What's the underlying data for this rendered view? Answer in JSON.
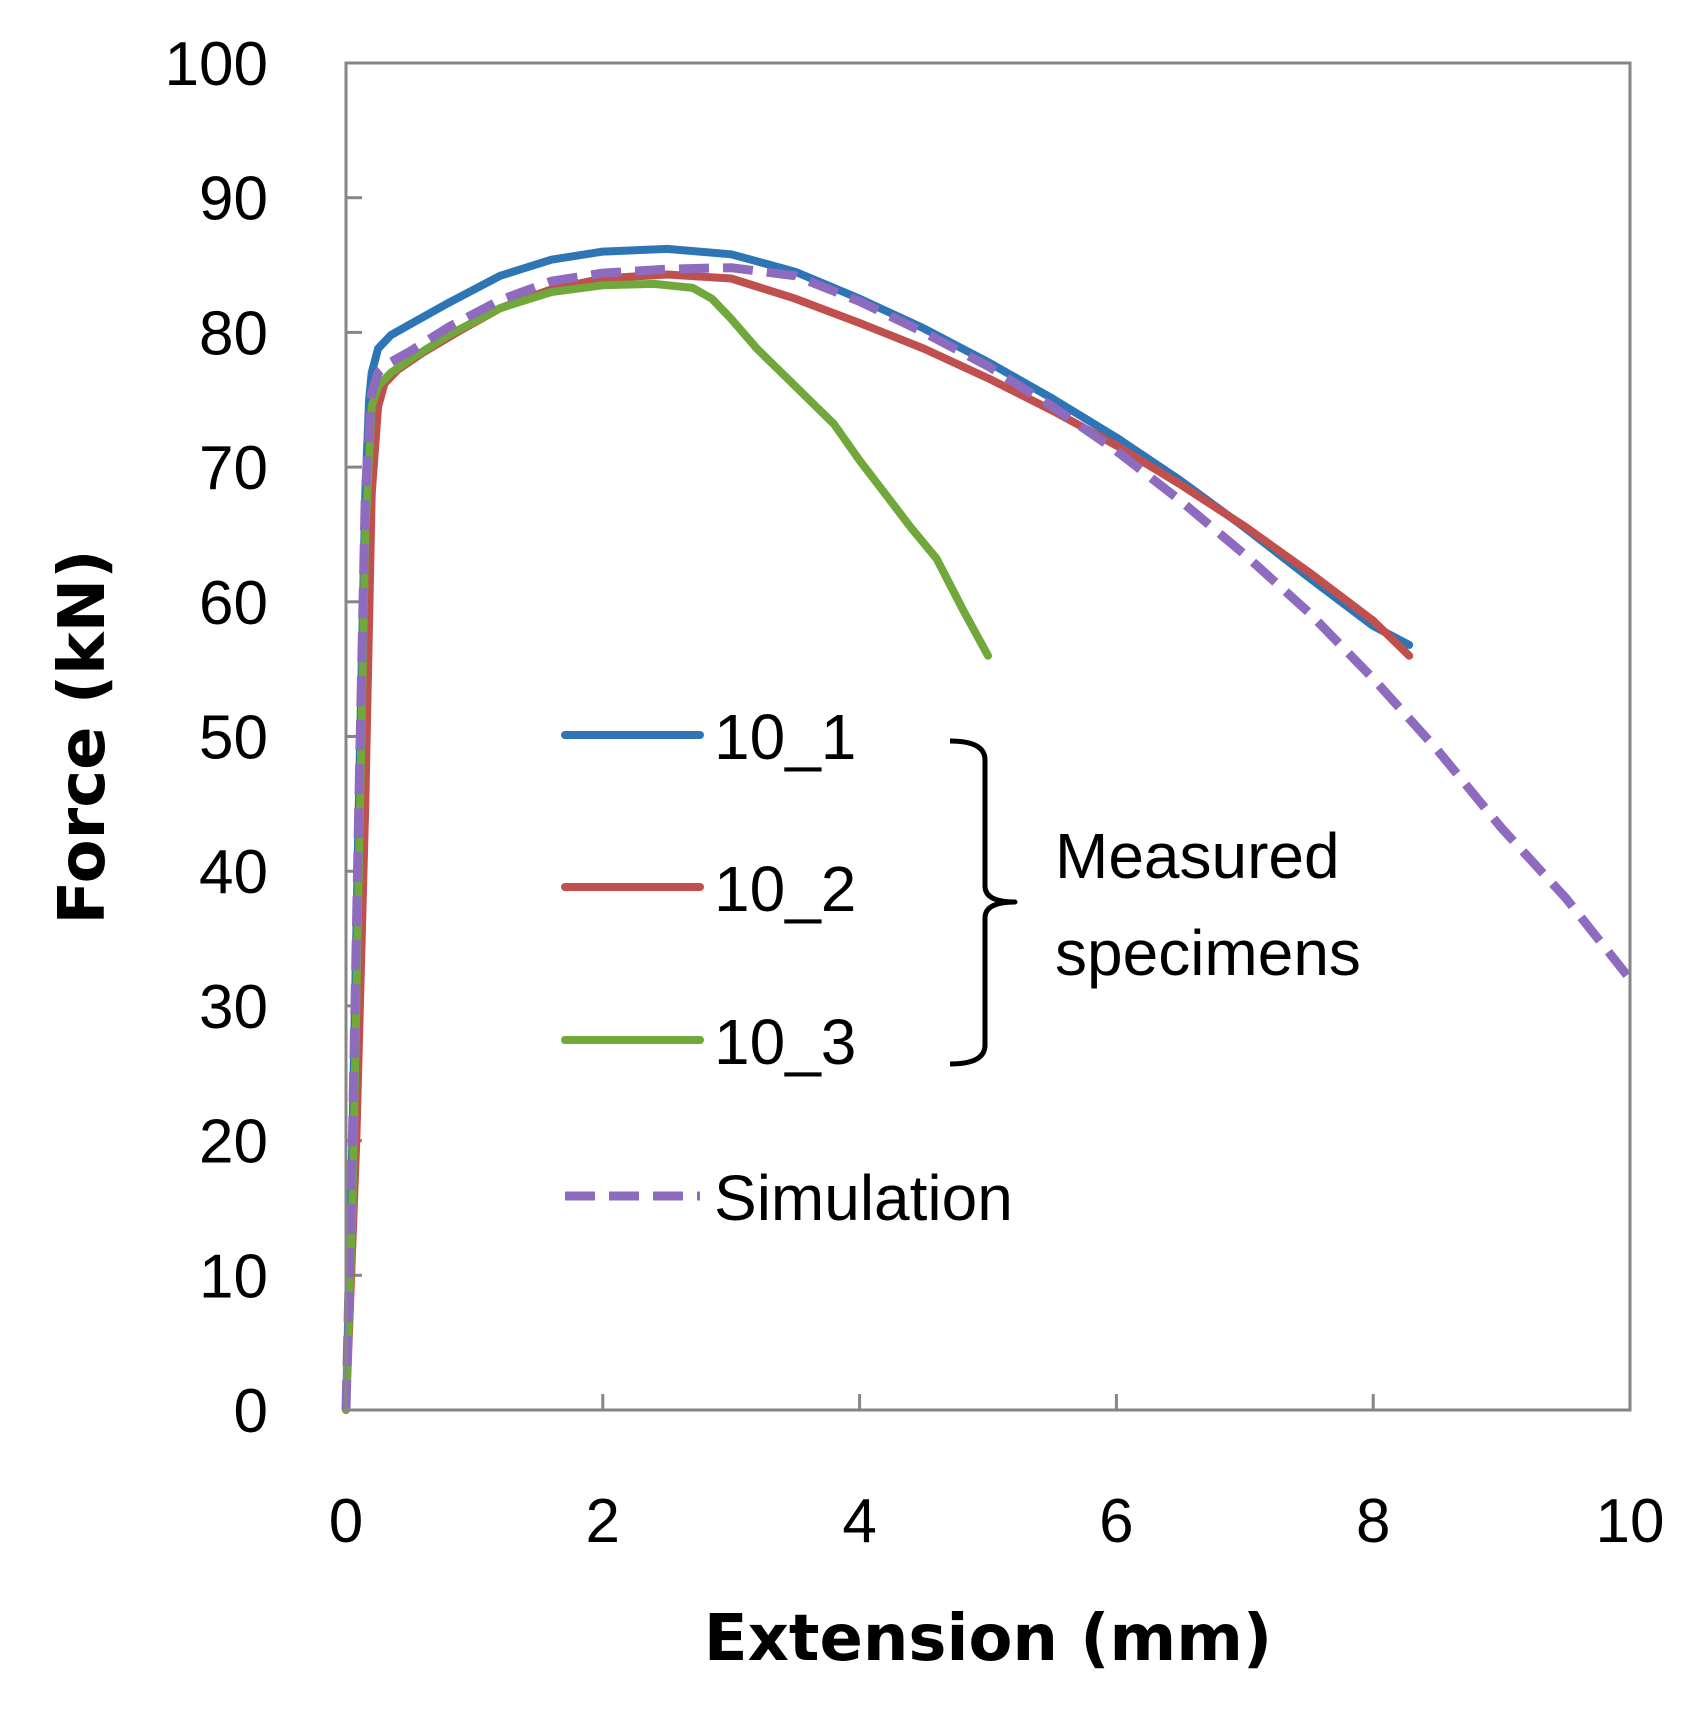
{
  "chart_data": {
    "type": "line",
    "title": "",
    "xlabel": "Extension (mm)",
    "ylabel": "Force (kN)",
    "xlim": [
      0,
      10
    ],
    "ylim": [
      0,
      100
    ],
    "xticks": [
      0,
      2,
      4,
      6,
      8,
      10
    ],
    "yticks": [
      0,
      10,
      20,
      30,
      40,
      50,
      60,
      70,
      80,
      90,
      100
    ],
    "grid": false,
    "series": [
      {
        "name": "10_1",
        "color": "#2e75b6",
        "style": "solid",
        "group": "measured",
        "x": [
          0,
          0.05,
          0.1,
          0.15,
          0.18,
          0.2,
          0.25,
          0.35,
          0.5,
          0.8,
          1.2,
          1.6,
          2.0,
          2.5,
          3.0,
          3.5,
          4.0,
          4.5,
          5.0,
          5.5,
          6.0,
          6.5,
          7.0,
          7.5,
          8.0,
          8.28
        ],
        "y": [
          0,
          20,
          45,
          68,
          75,
          77,
          78.8,
          79.8,
          80.6,
          82.2,
          84.2,
          85.4,
          86.0,
          86.2,
          85.8,
          84.5,
          82.5,
          80.3,
          77.8,
          75.1,
          72.2,
          69.0,
          65.5,
          61.8,
          58.2,
          56.8
        ]
      },
      {
        "name": "10_2",
        "color": "#c0504d",
        "style": "solid",
        "group": "measured",
        "x": [
          0,
          0.08,
          0.15,
          0.2,
          0.25,
          0.3,
          0.4,
          0.6,
          0.9,
          1.2,
          1.6,
          2.0,
          2.5,
          3.0,
          3.5,
          4.0,
          4.5,
          5.0,
          5.5,
          6.0,
          6.5,
          7.0,
          7.5,
          8.0,
          8.28
        ],
        "y": [
          0,
          20,
          45,
          68,
          74.5,
          76.2,
          77.2,
          78.5,
          80.2,
          81.8,
          83.2,
          84.0,
          84.3,
          84.0,
          82.5,
          80.7,
          78.8,
          76.6,
          74.2,
          71.6,
          68.7,
          65.6,
          62.2,
          58.6,
          56.0
        ]
      },
      {
        "name": "10_3",
        "color": "#70a83b",
        "style": "solid",
        "group": "measured",
        "x": [
          0,
          0.05,
          0.1,
          0.15,
          0.2,
          0.25,
          0.35,
          0.5,
          0.8,
          1.2,
          1.6,
          2.0,
          2.4,
          2.7,
          2.85,
          3.0,
          3.2,
          3.5,
          3.8,
          4.0,
          4.2,
          4.4,
          4.6,
          4.8,
          5.0
        ],
        "y": [
          0,
          15,
          40,
          65,
          74.5,
          76.0,
          77.0,
          78.0,
          79.8,
          81.8,
          83.0,
          83.5,
          83.6,
          83.3,
          82.5,
          81.0,
          78.8,
          76.0,
          73.2,
          70.5,
          68.0,
          65.5,
          63.2,
          59.5,
          56.0
        ]
      },
      {
        "name": "Simulation",
        "color": "#8e6bbf",
        "style": "dashed",
        "group": "simulation",
        "x": [
          0,
          0.05,
          0.1,
          0.15,
          0.2,
          0.25,
          0.35,
          0.5,
          0.8,
          1.2,
          1.6,
          2.0,
          2.5,
          3.0,
          3.5,
          4.0,
          4.5,
          5.0,
          5.5,
          6.0,
          6.5,
          7.0,
          7.5,
          8.0,
          8.5,
          9.0,
          9.5,
          10.0
        ],
        "y": [
          0,
          20,
          45,
          68,
          75.5,
          77.0,
          77.8,
          78.6,
          80.4,
          82.4,
          83.8,
          84.4,
          84.7,
          84.8,
          84.2,
          82.3,
          80.0,
          77.5,
          74.5,
          71.2,
          67.5,
          63.5,
          59.2,
          54.3,
          49.0,
          43.2,
          38.0,
          32.0
        ]
      }
    ],
    "legend": {
      "placement": "center",
      "entries": [
        "10_1",
        "10_2",
        "10_3",
        "Simulation"
      ],
      "group_label": "Measured specimens",
      "group_label_lines": [
        "Measured",
        "specimens"
      ]
    }
  }
}
